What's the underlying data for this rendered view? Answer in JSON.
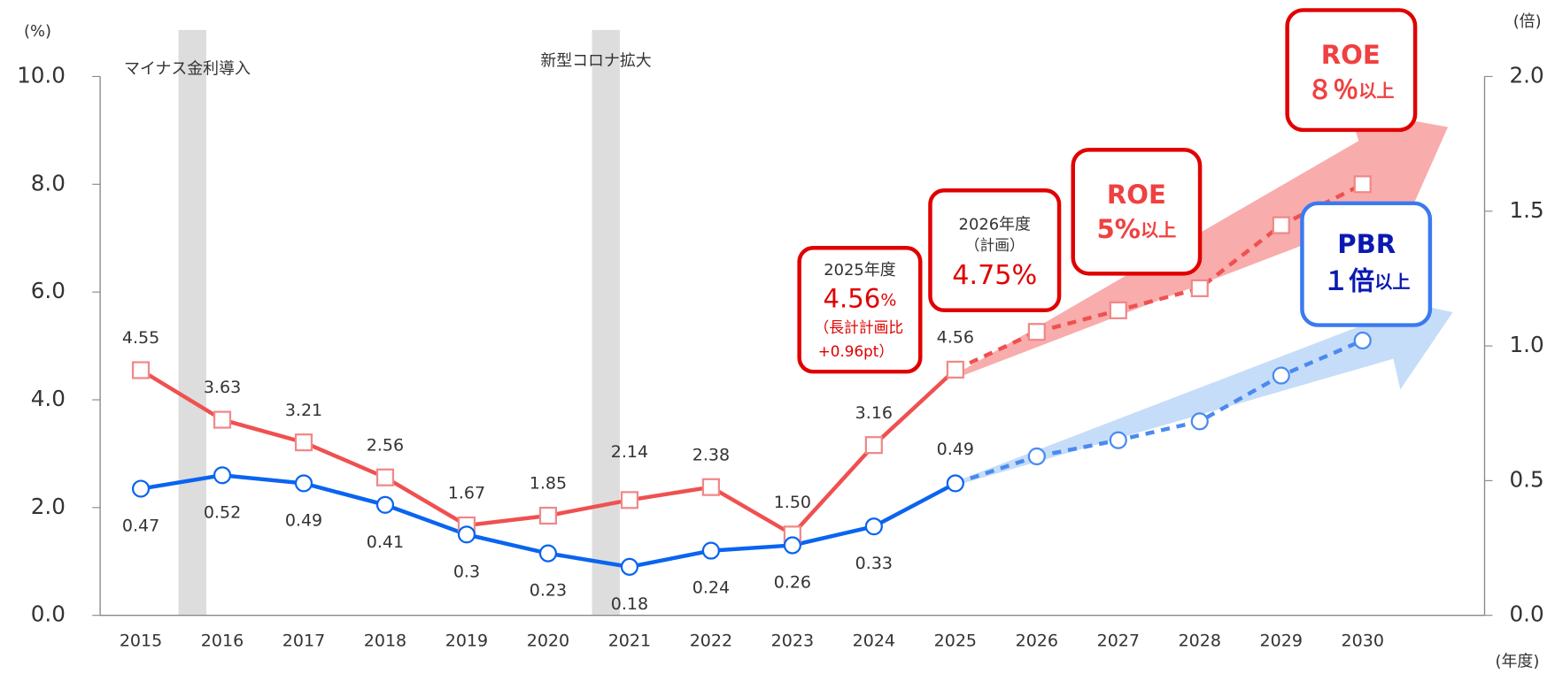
{
  "chart_data": {
    "type": "line",
    "y_label": "(%)",
    "y2_label": "(倍)",
    "x_label": "(年度)",
    "categories": [
      "2015",
      "2016",
      "2017",
      "2018",
      "2019",
      "2020",
      "2021",
      "2022",
      "2023",
      "2024",
      "2025",
      "2026",
      "2027",
      "2028",
      "2029",
      "2030"
    ],
    "ylim": [
      0,
      10
    ],
    "yticks": [
      {
        "value": 0,
        "label": "0.0"
      },
      {
        "value": 2,
        "label": "2.0"
      },
      {
        "value": 4,
        "label": "4.0"
      },
      {
        "value": 6,
        "label": "6.0"
      },
      {
        "value": 8,
        "label": "8.0"
      },
      {
        "value": 10,
        "label": "10.0"
      }
    ],
    "y2lim": [
      0,
      2
    ],
    "y2ticks": [
      {
        "value": 0,
        "label": "0.0"
      },
      {
        "value": 0.5,
        "label": "0.5"
      },
      {
        "value": 1,
        "label": "1.0"
      },
      {
        "value": 1.5,
        "label": "1.5"
      },
      {
        "value": 2,
        "label": "2.0"
      }
    ],
    "series": [
      {
        "color": "#f05050",
        "marker": "square",
        "values": [
          4.55,
          3.63,
          3.21,
          2.56,
          1.67,
          1.85,
          2.14,
          2.38,
          1.5,
          3.16,
          4.56,
          null,
          null,
          null,
          null,
          null
        ],
        "value_labels": [
          "4.55",
          "3.63",
          "3.21",
          "2.56",
          "1.67",
          "1.85",
          "2.14",
          "2.38",
          "1.50",
          "3.16",
          "4.56",
          null,
          null,
          null,
          null,
          null
        ]
      },
      {
        "color": "#f05050",
        "marker": "square",
        "dashed": true,
        "values": [
          null,
          null,
          null,
          null,
          null,
          null,
          null,
          null,
          null,
          null,
          null,
          5.26,
          5.66,
          6.07,
          7.24,
          8.0
        ]
      },
      {
        "color": "#0a64f0",
        "marker": "circle",
        "axis": "y2",
        "labeled": true,
        "values": [
          0.47,
          0.52,
          0.49,
          0.41,
          0.3,
          0.23,
          0.18,
          0.24,
          0.26,
          0.33,
          0.49,
          null,
          null,
          null,
          null,
          null
        ]
      },
      {
        "color": "#4a8af0",
        "marker": "circle",
        "axis": "y2",
        "dashed": true,
        "values": [
          null,
          null,
          null,
          null,
          null,
          null,
          null,
          null,
          null,
          null,
          null,
          0.59,
          0.65,
          0.72,
          0.89,
          1.02
        ]
      }
    ],
    "annotations": {
      "bands": [
        "マイナス金利導入",
        "新型コロナ拡大"
      ],
      "callout_2025": [
        "2025年度",
        "4.56",
        "%",
        "（長計計画比",
        "+0.96pt）"
      ],
      "callout_2026": [
        "2026年度",
        "（計画）",
        "4.75%"
      ],
      "target_roe_mid": [
        "ROE",
        "5%",
        "以上"
      ],
      "target_roe_high": [
        "ROE",
        "８％",
        "以上"
      ],
      "target_pbr": [
        "PBR",
        "１倍",
        "以上"
      ]
    }
  }
}
